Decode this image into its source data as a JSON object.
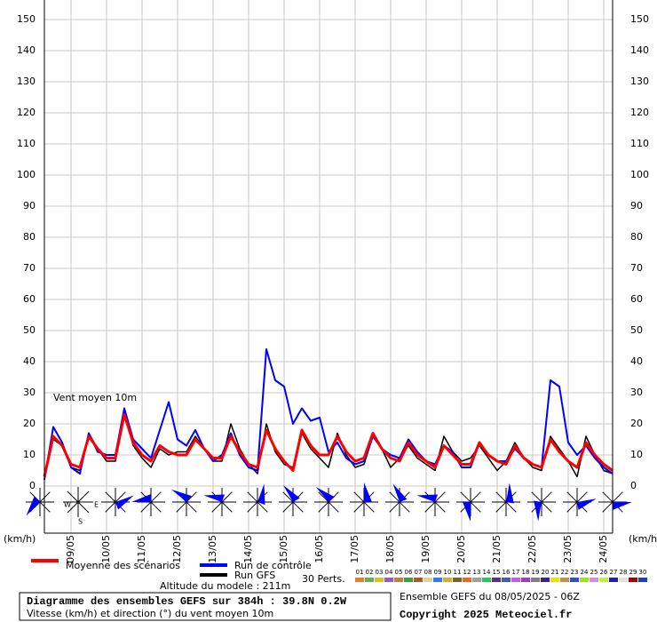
{
  "chart_data": {
    "type": "line",
    "x": [
      0,
      6,
      12,
      18,
      24,
      30,
      36,
      42,
      48,
      54,
      60,
      66,
      72,
      78,
      84,
      90,
      96,
      102,
      108,
      114,
      120,
      126,
      132,
      138,
      144,
      150,
      156,
      162,
      168,
      174,
      180,
      186,
      192,
      198,
      204,
      210,
      216,
      222,
      228,
      234,
      240,
      246,
      252,
      258,
      264,
      270,
      276,
      282,
      288,
      294,
      300,
      306,
      312,
      318,
      324,
      330,
      336,
      342,
      348,
      354,
      360,
      366,
      372,
      378,
      384
    ],
    "xlim": [
      0,
      384
    ],
    "xticks": [
      {
        "value": 18,
        "label": "09/05"
      },
      {
        "value": 42,
        "label": "10/05"
      },
      {
        "value": 66,
        "label": "11/05"
      },
      {
        "value": 90,
        "label": "12/05"
      },
      {
        "value": 114,
        "label": "13/05"
      },
      {
        "value": 138,
        "label": "14/05"
      },
      {
        "value": 162,
        "label": "15/05"
      },
      {
        "value": 186,
        "label": "16/05"
      },
      {
        "value": 210,
        "label": "17/05"
      },
      {
        "value": 234,
        "label": "18/05"
      },
      {
        "value": 258,
        "label": "19/05"
      },
      {
        "value": 282,
        "label": "20/05"
      },
      {
        "value": 306,
        "label": "21/05"
      },
      {
        "value": 330,
        "label": "22/05"
      },
      {
        "value": 354,
        "label": "23/05"
      },
      {
        "value": 378,
        "label": "24/05"
      }
    ],
    "ylim": [
      0,
      150
    ],
    "yticks": [
      0,
      10,
      20,
      30,
      40,
      50,
      60,
      70,
      80,
      90,
      100,
      110,
      120,
      130,
      140,
      150
    ],
    "grid": true,
    "y_unit_left": "(km/h)",
    "y_unit_right": "(km/h)",
    "annotation": "Vent moyen 10m",
    "series": [
      {
        "name": "Moyenne des scénarios",
        "color": "#ff0000",
        "values": [
          3,
          16,
          13,
          7,
          6,
          16,
          12,
          9,
          9,
          23,
          14,
          10,
          8,
          13,
          11,
          10,
          10,
          15,
          12,
          9,
          9,
          16,
          11,
          7,
          6,
          18,
          12,
          8,
          5,
          18,
          13,
          10,
          10,
          16,
          11,
          8,
          9,
          17,
          12,
          9,
          8,
          14,
          10,
          8,
          6,
          13,
          10,
          7,
          7,
          14,
          10,
          8,
          7,
          13,
          9,
          7,
          6,
          15,
          11,
          8,
          6,
          14,
          10,
          7,
          5
        ]
      },
      {
        "name": "Run de contrôle",
        "color": "#0000ff",
        "values": [
          2,
          19,
          14,
          6,
          4,
          17,
          11,
          10,
          10,
          25,
          15,
          12,
          9,
          18,
          27,
          15,
          13,
          18,
          12,
          8,
          10,
          17,
          10,
          6,
          5,
          44,
          34,
          32,
          20,
          25,
          21,
          22,
          11,
          14,
          9,
          7,
          8,
          16,
          12,
          10,
          9,
          15,
          11,
          8,
          7,
          13,
          11,
          6,
          6,
          14,
          10,
          8,
          8,
          12,
          9,
          7,
          6,
          34,
          32,
          14,
          10,
          13,
          9,
          6,
          4
        ]
      },
      {
        "name": "Run GFS",
        "color": "#000000",
        "values": [
          3,
          15,
          13,
          6,
          5,
          17,
          12,
          8,
          8,
          24,
          13,
          9,
          6,
          12,
          10,
          11,
          11,
          16,
          12,
          8,
          8,
          20,
          12,
          7,
          4,
          20,
          11,
          7,
          6,
          17,
          12,
          9,
          6,
          17,
          10,
          6,
          7,
          16,
          12,
          6,
          9,
          13,
          9,
          7,
          5,
          16,
          11,
          8,
          9,
          13,
          9,
          5,
          8,
          14,
          9,
          6,
          5,
          16,
          12,
          8,
          3,
          16,
          10,
          5,
          4
        ]
      }
    ],
    "wind": {
      "x": [
        0,
        48,
        72,
        96,
        120,
        144,
        168,
        192,
        216,
        240,
        264,
        288,
        312,
        336,
        360,
        384
      ],
      "dir": [
        45,
        250,
        90,
        130,
        110,
        200,
        150,
        140,
        180,
        160,
        110,
        0,
        190,
        10,
        260,
        270
      ],
      "compass": {
        "west": "W",
        "east": "E",
        "south": "S"
      }
    },
    "perturbations_label": "30 Perts.",
    "perturbations": [
      {
        "name": "01",
        "color": "#e08030"
      },
      {
        "name": "02",
        "color": "#60b060"
      },
      {
        "name": "03",
        "color": "#e0c020"
      },
      {
        "name": "04",
        "color": "#9060c0"
      },
      {
        "name": "05",
        "color": "#c08040"
      },
      {
        "name": "06",
        "color": "#40a040"
      },
      {
        "name": "07",
        "color": "#a06030"
      },
      {
        "name": "08",
        "color": "#e0d0a0"
      },
      {
        "name": "09",
        "color": "#3080e0"
      },
      {
        "name": "10",
        "color": "#d0b030"
      },
      {
        "name": "11",
        "color": "#806030"
      },
      {
        "name": "12",
        "color": "#e07020"
      },
      {
        "name": "13",
        "color": "#a0a0a0"
      },
      {
        "name": "14",
        "color": "#30c060"
      },
      {
        "name": "15",
        "color": "#603080"
      },
      {
        "name": "16",
        "color": "#4060a0"
      },
      {
        "name": "17",
        "color": "#c060e0"
      },
      {
        "name": "18",
        "color": "#a040c0"
      },
      {
        "name": "19",
        "color": "#808080"
      },
      {
        "name": "20",
        "color": "#402080"
      },
      {
        "name": "21",
        "color": "#f0e000"
      },
      {
        "name": "22",
        "color": "#c09050"
      },
      {
        "name": "23",
        "color": "#3050c0"
      },
      {
        "name": "24",
        "color": "#a0e020"
      },
      {
        "name": "25",
        "color": "#d090e0"
      },
      {
        "name": "26",
        "color": "#c0f040"
      },
      {
        "name": "27",
        "color": "#2020a0"
      },
      {
        "name": "28",
        "color": "#e0e0e0"
      },
      {
        "name": "29",
        "color": "#a00000"
      },
      {
        "name": "30",
        "color": "#2040c0"
      }
    ],
    "altitude": "Altitude du modele : 211m",
    "footer_title": "Diagramme des ensembles GEFS sur 384h : 39.8N 0.2W",
    "footer_subtitle": "Vitesse (km/h) et direction (°) du vent moyen 10m",
    "run_info": "Ensemble GEFS du 08/05/2025 - 06Z",
    "copyright": "Copyright 2025 Meteociel.fr"
  }
}
